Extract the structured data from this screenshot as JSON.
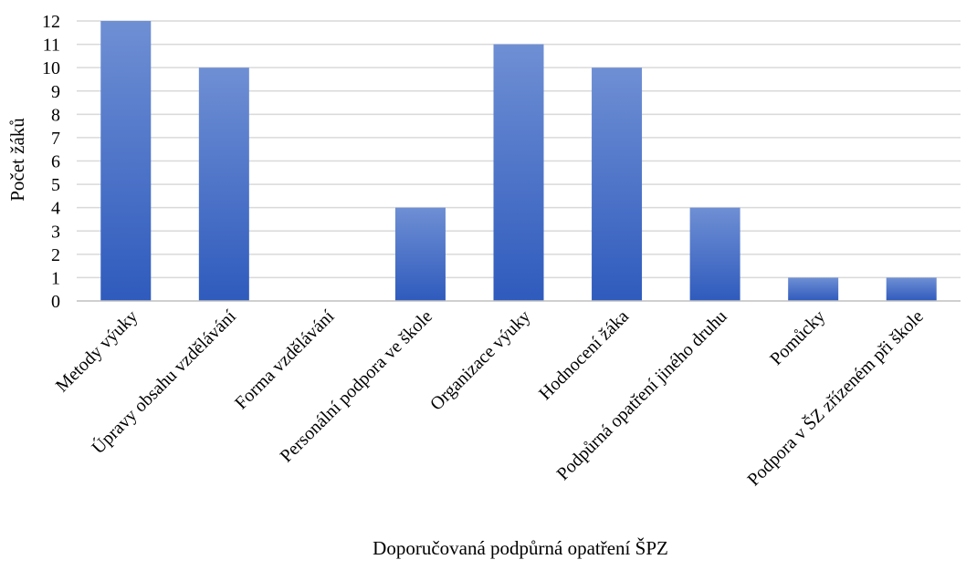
{
  "chart_data": {
    "type": "bar",
    "title": "",
    "xlabel": "Doporučovaná podpůrná opatření ŠPZ",
    "ylabel": "Počet žáků",
    "categories": [
      "Metody výuky",
      "Úpravy obsahu vzdělávání",
      "Forma vzdělávání",
      "Personální podpora ve škole",
      "Organizace výuky",
      "Hodnocení žáka",
      "Podpůrná opatření jiného druhu",
      "Pomůcky",
      "Podpora v ŠZ zřízeném při škole"
    ],
    "values": [
      12,
      10,
      0,
      4,
      11,
      10,
      4,
      1,
      1
    ],
    "ylim": [
      0,
      12
    ],
    "yticks": [
      0,
      1,
      2,
      3,
      4,
      5,
      6,
      7,
      8,
      9,
      10,
      11,
      12
    ],
    "grid": true,
    "legend": "none",
    "bar_color_top": "#6f8fd4",
    "bar_color_bottom": "#2f5bbd",
    "grid_color": "#d9d9d9",
    "axis_color": "#bfbfbf"
  }
}
